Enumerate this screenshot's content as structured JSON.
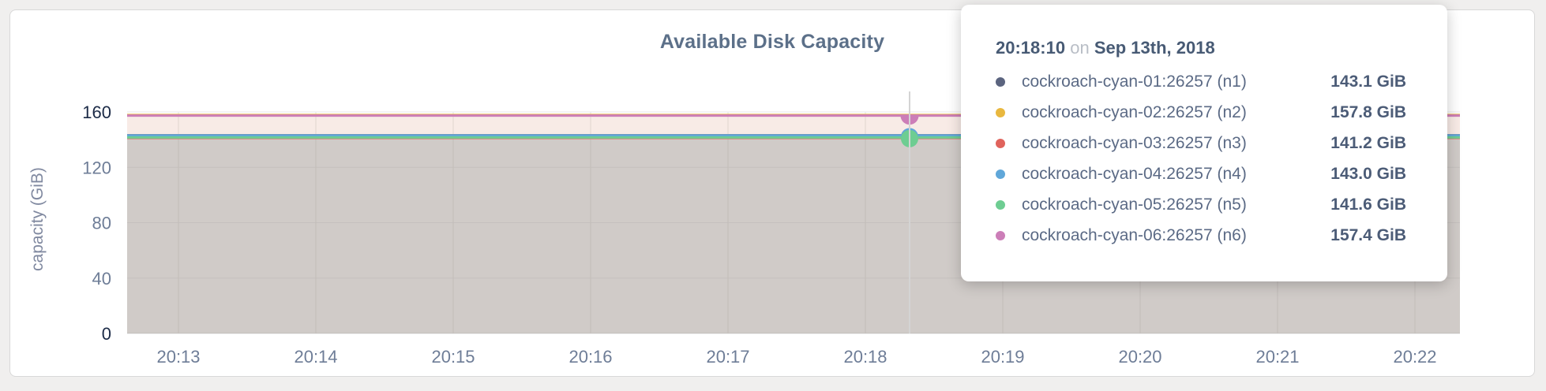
{
  "chart_data": {
    "type": "area",
    "title": "Available Disk Capacity",
    "ylabel": "capacity (GiB)",
    "ylim": [
      0,
      160
    ],
    "yticks": [
      0,
      40,
      80,
      120,
      160
    ],
    "xticks": [
      "20:13",
      "20:14",
      "20:15",
      "20:16",
      "20:17",
      "20:18",
      "20:19",
      "20:20",
      "20:21",
      "20:22"
    ],
    "grid": "on",
    "series_note": "all series are flat (constant) across the visible 20:13-20:22 window",
    "series": [
      {
        "name": "cockroach-cyan-01:26257 (n1)",
        "node": "n1",
        "value_gib": 143.1,
        "color": "#5b647f"
      },
      {
        "name": "cockroach-cyan-02:26257 (n2)",
        "node": "n2",
        "value_gib": 157.8,
        "color": "#e9b83f"
      },
      {
        "name": "cockroach-cyan-03:26257 (n3)",
        "node": "n3",
        "value_gib": 141.2,
        "color": "#e0635c"
      },
      {
        "name": "cockroach-cyan-04:26257 (n4)",
        "node": "n4",
        "value_gib": 143.0,
        "color": "#60a7d9"
      },
      {
        "name": "cockroach-cyan-05:26257 (n5)",
        "node": "n5",
        "value_gib": 141.6,
        "color": "#6ecd92"
      },
      {
        "name": "cockroach-cyan-06:26257 (n6)",
        "node": "n6",
        "value_gib": 157.4,
        "color": "#cc7eb8"
      }
    ],
    "hover": {
      "time_label": "20:18:10",
      "markers": [
        {
          "series": "n4",
          "shape": "circle"
        },
        {
          "series": "n5",
          "shape": "circle"
        },
        {
          "series": "n6",
          "shape": "half-circle"
        }
      ]
    }
  },
  "tooltip": {
    "time": "20:18:10",
    "connector": "on",
    "date": "Sep 13th, 2018",
    "rows": [
      {
        "series": "n1",
        "value": "143.1 GiB"
      },
      {
        "series": "n2",
        "value": "157.8 GiB"
      },
      {
        "series": "n3",
        "value": "141.2 GiB"
      },
      {
        "series": "n4",
        "value": "143.0 GiB"
      },
      {
        "series": "n5",
        "value": "141.6 GiB"
      },
      {
        "series": "n6",
        "value": "157.4 GiB"
      }
    ]
  }
}
